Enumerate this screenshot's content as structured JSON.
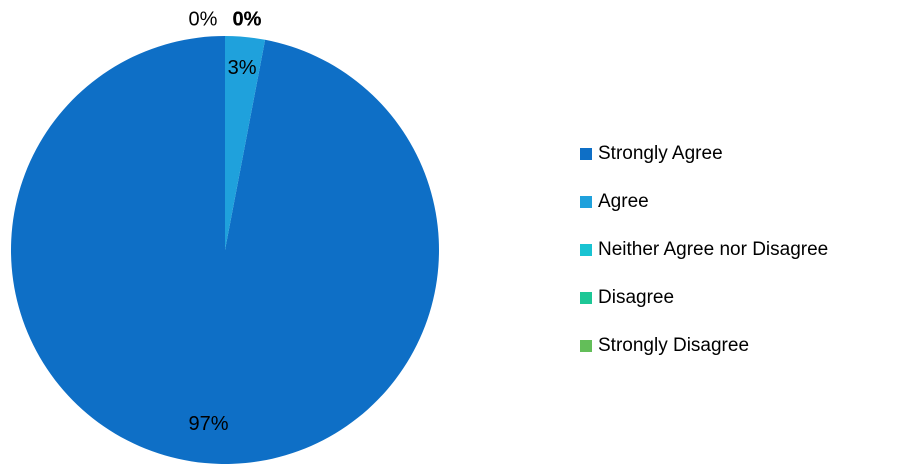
{
  "chart_data": {
    "type": "pie",
    "title": "",
    "categories": [
      "Strongly Agree",
      "Agree",
      "Neither Agree nor Disagree",
      "Disagree",
      "Strongly Disagree"
    ],
    "values": [
      97,
      3,
      0,
      0,
      0
    ],
    "data_labels": [
      "97%",
      "3%",
      "0%",
      "0%",
      "0%"
    ],
    "colors": [
      "#0E6FC6",
      "#1FA1DC",
      "#19C3D2",
      "#1DC796",
      "#63BE59"
    ],
    "legend_position": "right"
  }
}
